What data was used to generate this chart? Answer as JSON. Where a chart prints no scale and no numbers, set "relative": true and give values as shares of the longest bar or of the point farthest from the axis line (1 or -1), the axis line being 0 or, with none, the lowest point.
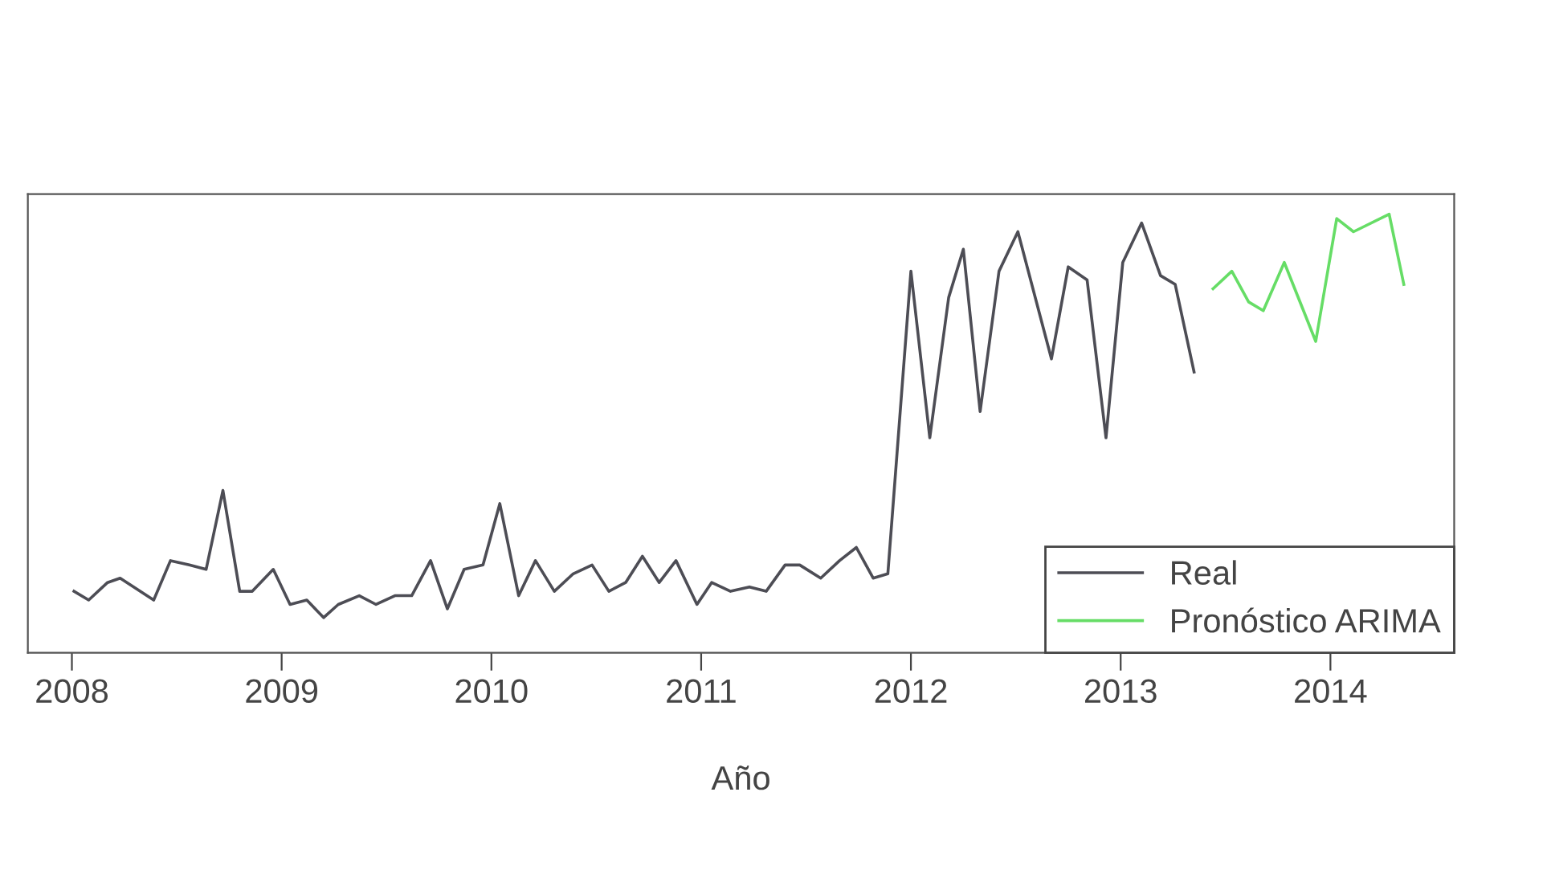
{
  "chart_data": {
    "type": "line",
    "relative": true,
    "xlabel": "Año",
    "xlim": [
      2007.79,
      2014.59
    ],
    "xticks": [
      2008,
      2009,
      2010,
      2011,
      2012,
      2013,
      2014
    ],
    "tick_labels": "x",
    "grid": false,
    "legend": "bottom right",
    "marker": "none",
    "line_style": "solid",
    "series": [
      {
        "name": "Real",
        "color": "#4d4d55",
        "x": [
          2008.01,
          2008.08,
          2008.17,
          2008.23,
          2008.39,
          2008.47,
          2008.56,
          2008.64,
          2008.72,
          2008.8,
          2008.86,
          2008.96,
          2009.04,
          2009.12,
          2009.2,
          2009.27,
          2009.37,
          2009.45,
          2009.54,
          2009.62,
          2009.71,
          2009.79,
          2009.87,
          2009.96,
          2010.04,
          2010.13,
          2010.21,
          2010.3,
          2010.39,
          2010.48,
          2010.56,
          2010.64,
          2010.72,
          2010.8,
          2010.88,
          2010.98,
          2011.05,
          2011.14,
          2011.23,
          2011.31,
          2011.4,
          2011.47,
          2011.57,
          2011.66,
          2011.74,
          2011.82,
          2011.89,
          2012.0,
          2012.09,
          2012.18,
          2012.25,
          2012.33,
          2012.42,
          2012.51,
          2012.67,
          2012.75,
          2012.84,
          2012.93,
          2013.01,
          2013.1,
          2013.19,
          2013.26,
          2013.35
        ],
        "values": [
          0.14,
          0.12,
          0.16,
          0.17,
          0.12,
          0.21,
          0.2,
          0.19,
          0.37,
          0.14,
          0.14,
          0.19,
          0.11,
          0.12,
          0.08,
          0.11,
          0.13,
          0.11,
          0.13,
          0.13,
          0.21,
          0.1,
          0.19,
          0.2,
          0.34,
          0.13,
          0.21,
          0.14,
          0.18,
          0.2,
          0.14,
          0.16,
          0.22,
          0.16,
          0.21,
          0.11,
          0.16,
          0.14,
          0.15,
          0.14,
          0.2,
          0.2,
          0.17,
          0.21,
          0.24,
          0.17,
          0.18,
          0.87,
          0.49,
          0.81,
          0.92,
          0.55,
          0.87,
          0.96,
          0.67,
          0.88,
          0.85,
          0.49,
          0.89,
          0.98,
          0.86,
          0.84,
          0.64
        ]
      },
      {
        "name": "Pronóstico ARIMA",
        "color": "#66dd66",
        "x": [
          2013.44,
          2013.53,
          2013.61,
          2013.68,
          2013.78,
          2013.93,
          2014.03,
          2014.11,
          2014.28,
          2014.35
        ],
        "values": [
          0.83,
          0.87,
          0.8,
          0.78,
          0.89,
          0.71,
          0.99,
          0.96,
          1.0,
          0.84
        ]
      }
    ]
  }
}
